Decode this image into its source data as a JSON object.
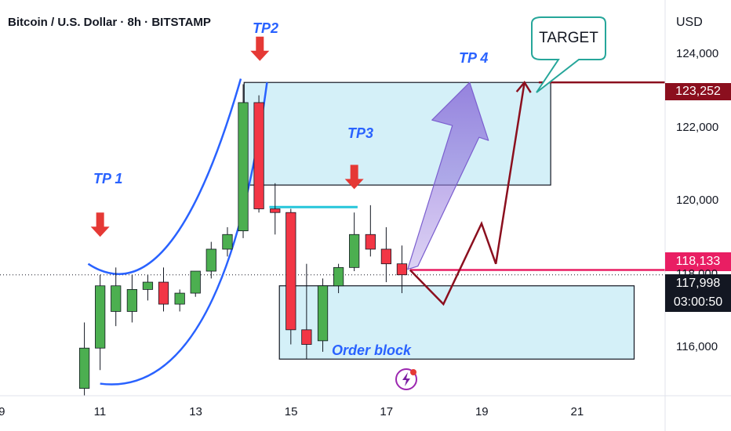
{
  "header": {
    "title": "Bitcoin / U.S. Dollar · 8h · BITSTAMP",
    "currency": "USD"
  },
  "colors": {
    "up": "#4caf50",
    "down": "#f23645",
    "zone_fill": "#d4f0f8",
    "arrow_red": "#e53935",
    "curve_blue": "#2962ff",
    "path_dark_red": "#8b0f1e",
    "purple_arrow": "#9b7fe0",
    "current_line": "#e91e63"
  },
  "annotations": {
    "tp1": "TP 1",
    "tp2": "TP2",
    "tp3": "TP3",
    "tp4": "TP 4",
    "target": "TARGET",
    "order_block": "Order block"
  },
  "price_tags": {
    "target": "123,252",
    "current_marked": "118,133",
    "last": "117,998",
    "countdown": "03:00:50"
  },
  "chart_data": {
    "type": "candlestick",
    "title": "Bitcoin / U.S. Dollar · 8h · BITSTAMP",
    "ylabel": "USD",
    "ylim": [
      114700,
      125500
    ],
    "y_ticks": [
      116000,
      118000,
      120000,
      122000,
      124000
    ],
    "y_tick_labels": [
      "116,000",
      "118,000",
      "120,000",
      "122,000",
      "124,000"
    ],
    "x_ticks": [
      9,
      11,
      13,
      15,
      17,
      19,
      21
    ],
    "x_tick_labels": [
      "9",
      "11",
      "13",
      "15",
      "17",
      "19",
      "21"
    ],
    "xlim": [
      8.9,
      22.85
    ],
    "candles": [
      {
        "t": 10.67,
        "o": 114900,
        "h": 116700,
        "l": 114700,
        "c": 116000
      },
      {
        "t": 11.0,
        "o": 116000,
        "h": 118000,
        "l": 115400,
        "c": 117700
      },
      {
        "t": 11.33,
        "o": 117000,
        "h": 118200,
        "l": 116600,
        "c": 117700
      },
      {
        "t": 11.67,
        "o": 117000,
        "h": 118000,
        "l": 116700,
        "c": 117600
      },
      {
        "t": 12.0,
        "o": 117600,
        "h": 118000,
        "l": 117300,
        "c": 117800
      },
      {
        "t": 12.33,
        "o": 117800,
        "h": 118200,
        "l": 117000,
        "c": 117200
      },
      {
        "t": 12.67,
        "o": 117200,
        "h": 117600,
        "l": 117000,
        "c": 117500
      },
      {
        "t": 13.0,
        "o": 117500,
        "h": 118100,
        "l": 117400,
        "c": 118100
      },
      {
        "t": 13.33,
        "o": 118100,
        "h": 118900,
        "l": 117900,
        "c": 118700
      },
      {
        "t": 13.67,
        "o": 118700,
        "h": 119300,
        "l": 118500,
        "c": 119100
      },
      {
        "t": 14.0,
        "o": 119200,
        "h": 123200,
        "l": 119000,
        "c": 122700
      },
      {
        "t": 14.33,
        "o": 122700,
        "h": 122900,
        "l": 119700,
        "c": 119800
      },
      {
        "t": 14.67,
        "o": 119800,
        "h": 120500,
        "l": 119100,
        "c": 119700
      },
      {
        "t": 15.0,
        "o": 119700,
        "h": 119800,
        "l": 116100,
        "c": 116500
      },
      {
        "t": 15.33,
        "o": 116500,
        "h": 118300,
        "l": 115700,
        "c": 116100
      },
      {
        "t": 15.67,
        "o": 116200,
        "h": 117900,
        "l": 115900,
        "c": 117700
      },
      {
        "t": 16.0,
        "o": 117700,
        "h": 118300,
        "l": 117500,
        "c": 118200
      },
      {
        "t": 16.33,
        "o": 118200,
        "h": 119700,
        "l": 118100,
        "c": 119100
      },
      {
        "t": 16.67,
        "o": 119100,
        "h": 119900,
        "l": 118500,
        "c": 118700
      },
      {
        "t": 17.0,
        "o": 118700,
        "h": 119300,
        "l": 117800,
        "c": 118300
      },
      {
        "t": 17.33,
        "o": 118300,
        "h": 118800,
        "l": 117500,
        "c": 118000
      }
    ],
    "zones": [
      {
        "label": "TP3",
        "t0": 14.02,
        "t1": 20.45,
        "p_low": 120450,
        "p_high": 123250
      },
      {
        "label": "Order block",
        "t0": 14.76,
        "t1": 22.2,
        "p_low": 115700,
        "p_high": 117700
      }
    ],
    "levels": [
      {
        "price": 123252,
        "t0": 20.2
      },
      {
        "price": 118133,
        "t0": 17.5
      },
      {
        "price": 117998,
        "t0": 8.9
      },
      {
        "price": 119850,
        "t0": 14.55,
        "t1": 16.4
      }
    ],
    "projected_path": [
      {
        "t": 17.5,
        "p": 118133
      },
      {
        "t": 18.2,
        "p": 117200
      },
      {
        "t": 19.0,
        "p": 119400
      },
      {
        "t": 19.3,
        "p": 118300
      },
      {
        "t": 19.9,
        "p": 123252
      }
    ],
    "tp4_arrow": {
      "from_t": 17.45,
      "from_p": 118150,
      "to_t": 18.75,
      "to_p": 123250
    }
  }
}
